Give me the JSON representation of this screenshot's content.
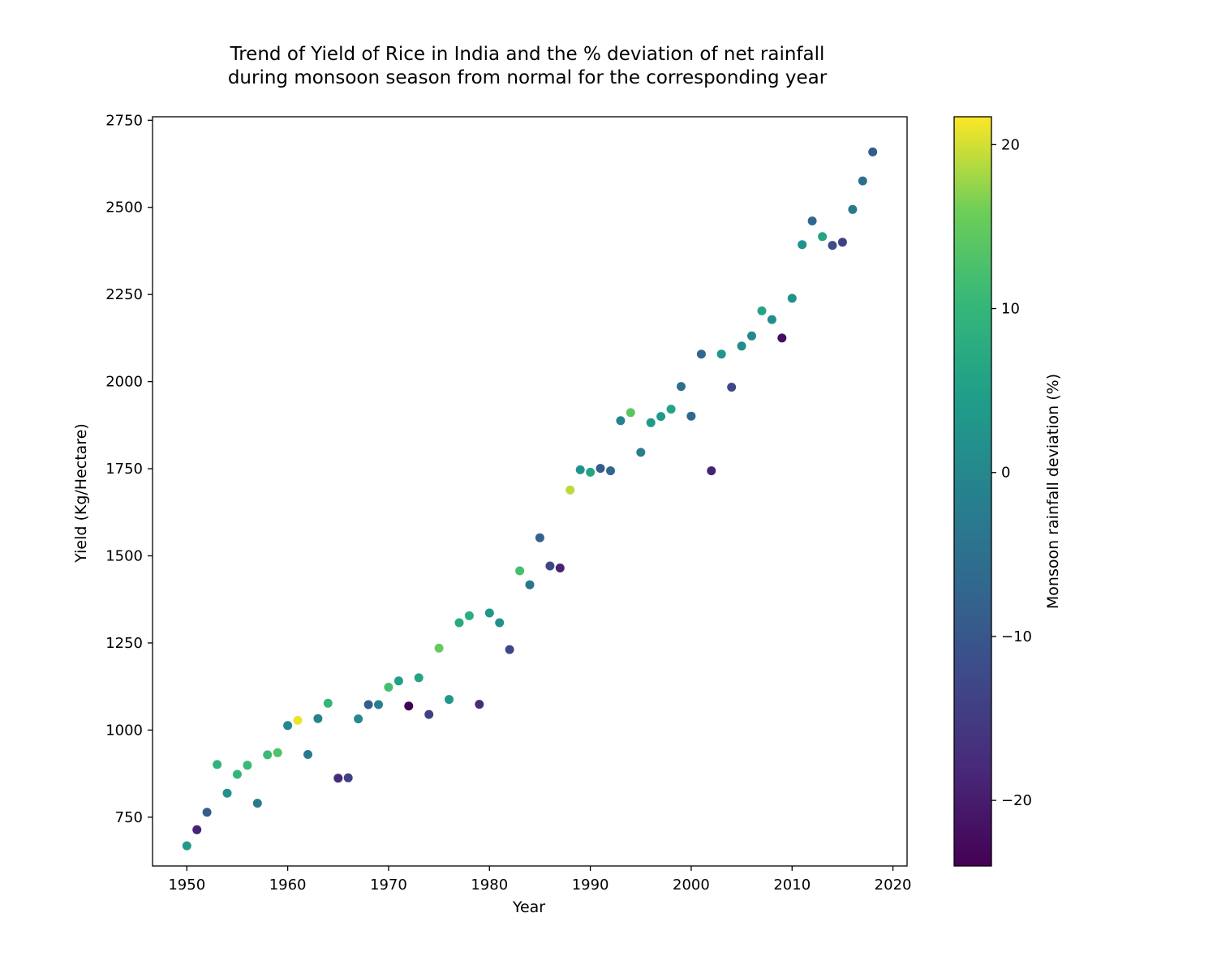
{
  "chart_data": {
    "type": "scatter",
    "title": "Trend of Yield of Rice in India and the % deviation of net rainfall",
    "subtitle": "during monsoon season from normal for the corresponding year",
    "xlabel": "Year",
    "ylabel": "Yield (Kg/Hectare)",
    "colorbar_label": "Monsoon rainfall deviation (%)",
    "colormap": "viridis",
    "grid": false,
    "xlim": [
      1946.6,
      2021.4
    ],
    "ylim": [
      610,
      2760
    ],
    "clim": [
      -24,
      21.7
    ],
    "x_ticks": [
      1950,
      1960,
      1970,
      1980,
      1990,
      2000,
      2010,
      2020
    ],
    "y_ticks": [
      750,
      1000,
      1250,
      1500,
      1750,
      2000,
      2250,
      2500,
      2750
    ],
    "colorbar_ticks": [
      -20,
      -10,
      0,
      10,
      20
    ],
    "colorbar_tick_labels": [
      "−20",
      "−10",
      "0",
      "10",
      "20"
    ],
    "x": [
      1950,
      1951,
      1952,
      1953,
      1954,
      1955,
      1956,
      1957,
      1958,
      1959,
      1960,
      1961,
      1962,
      1963,
      1964,
      1965,
      1966,
      1967,
      1968,
      1969,
      1970,
      1971,
      1972,
      1973,
      1974,
      1975,
      1976,
      1977,
      1978,
      1979,
      1980,
      1981,
      1982,
      1983,
      1984,
      1985,
      1986,
      1987,
      1988,
      1989,
      1990,
      1991,
      1992,
      1993,
      1994,
      1995,
      1996,
      1997,
      1998,
      1999,
      2000,
      2001,
      2002,
      2003,
      2004,
      2005,
      2006,
      2007,
      2008,
      2009,
      2010,
      2011,
      2012,
      2013,
      2014,
      2015,
      2016,
      2017,
      2018
    ],
    "y": [
      668,
      714,
      764,
      901,
      819,
      873,
      899,
      790,
      929,
      935,
      1013,
      1028,
      930,
      1033,
      1077,
      862,
      863,
      1032,
      1073,
      1073,
      1123,
      1141,
      1069,
      1150,
      1045,
      1235,
      1088,
      1308,
      1328,
      1074,
      1336,
      1308,
      1231,
      1457,
      1417,
      1552,
      1471,
      1465,
      1689,
      1747,
      1740,
      1751,
      1744,
      1888,
      1911,
      1797,
      1882,
      1900,
      1921,
      1986,
      1901,
      2079,
      1744,
      2079,
      1984,
      2102,
      2131,
      2203,
      2178,
      2125,
      2239,
      2393,
      2461,
      2416,
      2391,
      2400,
      2494,
      2576,
      2659
    ],
    "rainfall_deviation": [
      4,
      -19,
      -9,
      9,
      2,
      10,
      11,
      -3,
      11,
      13,
      0,
      21,
      -3,
      -1,
      10,
      -18,
      -14,
      0,
      -9,
      -2,
      12,
      5,
      -24,
      6,
      -14,
      15,
      3,
      7,
      8,
      -18,
      3,
      2,
      -13,
      12,
      -4,
      -8,
      -13,
      -19,
      19,
      2,
      6,
      -9,
      -7,
      -1,
      14,
      -2,
      4,
      4,
      6,
      -5,
      -7,
      -7,
      -19,
      3,
      -13,
      1,
      0,
      6,
      1,
      -22,
      2,
      2,
      -7,
      6,
      -12,
      -14,
      -3,
      -5,
      -9
    ]
  }
}
